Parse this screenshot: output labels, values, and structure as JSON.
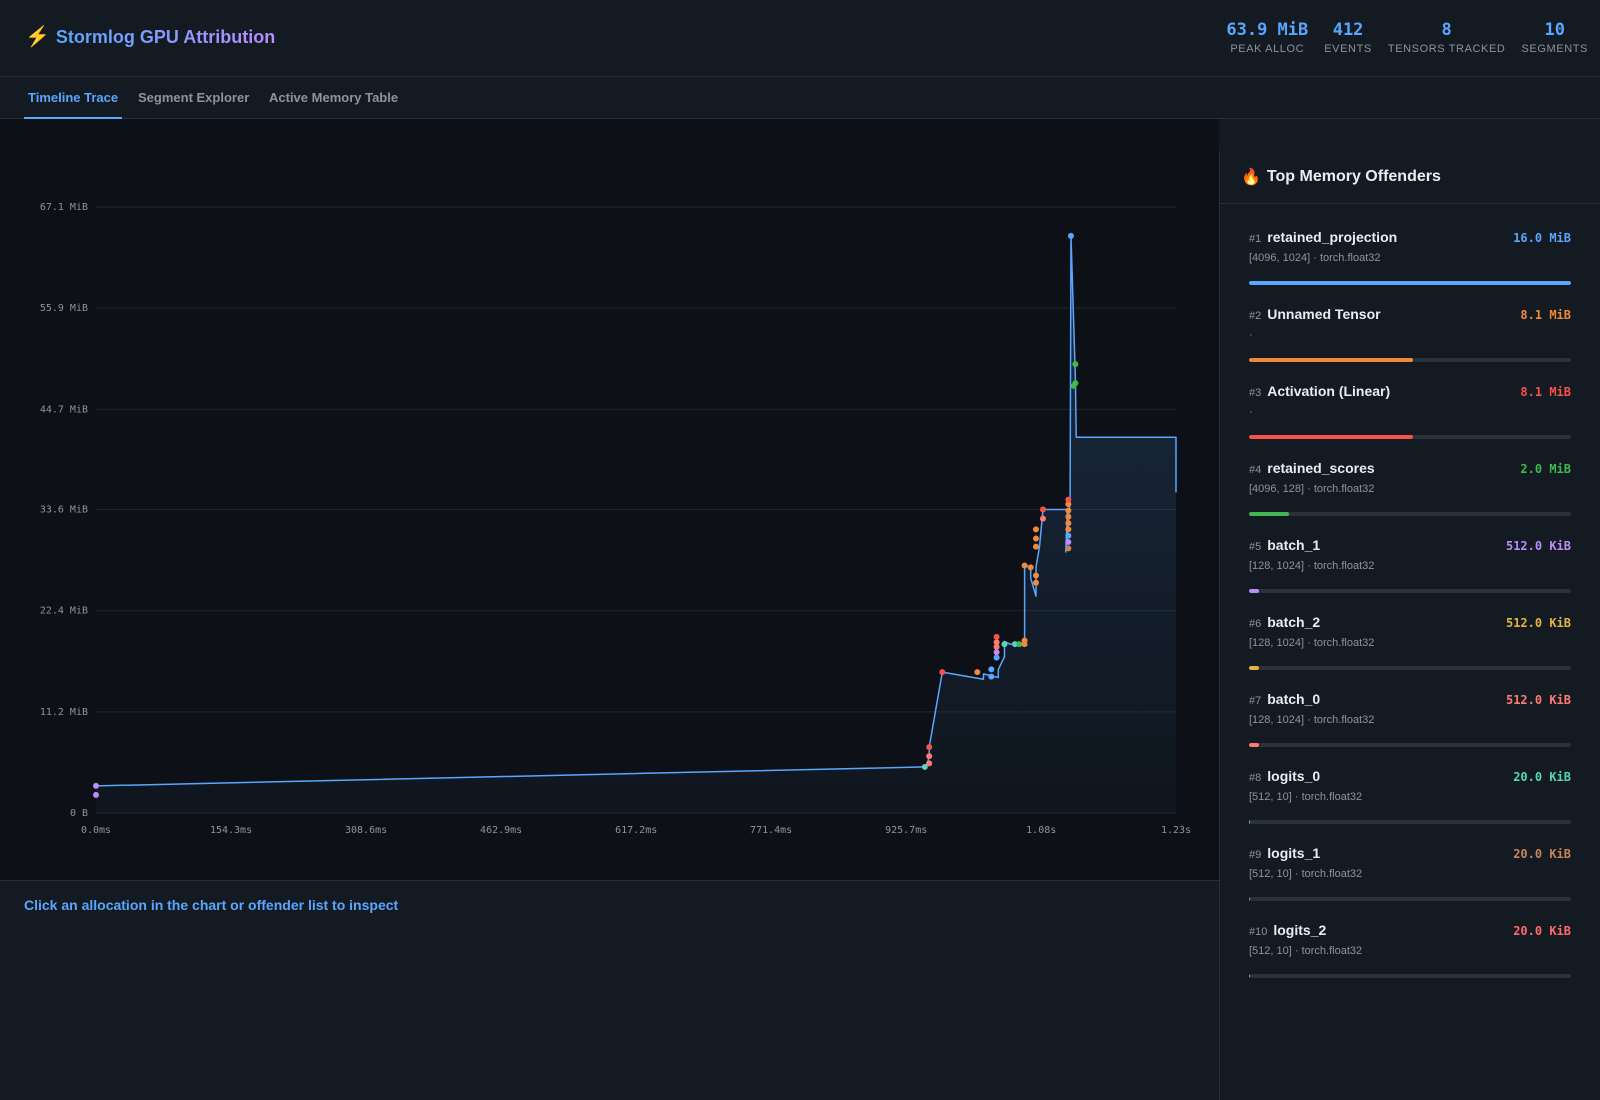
{
  "app": {
    "title": "Stormlog GPU Attribution",
    "icon": "lightning-icon"
  },
  "stats": [
    {
      "value": "63.9 MiB",
      "label": "PEAK ALLOC"
    },
    {
      "value": "412",
      "label": "EVENTS"
    },
    {
      "value": "8",
      "label": "TENSORS TRACKED"
    },
    {
      "value": "10",
      "label": "SEGMENTS"
    }
  ],
  "tabs": [
    {
      "label": "Timeline Trace",
      "active": true
    },
    {
      "label": "Segment Explorer",
      "active": false
    },
    {
      "label": "Active Memory Table",
      "active": false
    }
  ],
  "inspector": {
    "hint": "Click an allocation in the chart or offender list to inspect"
  },
  "sidebar": {
    "title": "Top Memory Offenders",
    "icon": "fire-icon",
    "items": [
      {
        "rank": "#1",
        "name": "retained_projection",
        "size": "16.0 MiB",
        "meta": "[4096, 1024] · torch.float32",
        "color": "#58a6ff",
        "fraction": 1.0
      },
      {
        "rank": "#2",
        "name": "Unnamed Tensor",
        "size": "8.1 MiB",
        "meta": "·",
        "color": "#f0883e",
        "fraction": 0.51
      },
      {
        "rank": "#3",
        "name": "Activation (Linear)",
        "size": "8.1 MiB",
        "meta": "·",
        "color": "#f85149",
        "fraction": 0.51
      },
      {
        "rank": "#4",
        "name": "retained_scores",
        "size": "2.0 MiB",
        "meta": "[4096, 128] · torch.float32",
        "color": "#3fb950",
        "fraction": 0.125
      },
      {
        "rank": "#5",
        "name": "batch_1",
        "size": "512.0 KiB",
        "meta": "[128, 1024] · torch.float32",
        "color": "#bc8cff",
        "fraction": 0.031
      },
      {
        "rank": "#6",
        "name": "batch_2",
        "size": "512.0 KiB",
        "meta": "[128, 1024] · torch.float32",
        "color": "#e3b341",
        "fraction": 0.031
      },
      {
        "rank": "#7",
        "name": "batch_0",
        "size": "512.0 KiB",
        "meta": "[128, 1024] · torch.float32",
        "color": "#ff7b72",
        "fraction": 0.031
      },
      {
        "rank": "#8",
        "name": "logits_0",
        "size": "20.0 KiB",
        "meta": "[512, 10] · torch.float32",
        "color": "#56d4bc",
        "fraction": 0.0015
      },
      {
        "rank": "#9",
        "name": "logits_1",
        "size": "20.0 KiB",
        "meta": "[512, 10] · torch.float32",
        "color": "#c8835a",
        "fraction": 0.0015
      },
      {
        "rank": "#10",
        "name": "logits_2",
        "size": "20.0 KiB",
        "meta": "[512, 10] · torch.float32",
        "color": "#ff6b6b",
        "fraction": 0.0015
      }
    ]
  },
  "chart_data": {
    "type": "line",
    "title": "",
    "xlabel": "",
    "ylabel": "",
    "x_unit": "ms",
    "y_unit": "MiB",
    "xlim": [
      0,
      1234
    ],
    "ylim": [
      0,
      67.1
    ],
    "x_ticks": [
      "0.0ms",
      "154.3ms",
      "308.6ms",
      "462.9ms",
      "617.2ms",
      "771.4ms",
      "925.7ms",
      "1.08s",
      "1.23s"
    ],
    "x_tick_values": [
      0,
      154.3,
      308.6,
      462.9,
      617.2,
      771.4,
      925.7,
      1080,
      1234
    ],
    "y_ticks": [
      "0 B",
      "11.2 MiB",
      "22.4 MiB",
      "33.6 MiB",
      "44.7 MiB",
      "55.9 MiB",
      "67.1 MiB"
    ],
    "y_tick_values": [
      0,
      11.2,
      22.4,
      33.6,
      44.7,
      55.9,
      67.1
    ],
    "grid": true,
    "line_color": "#58a6ff",
    "series": [
      {
        "values": [
          [
            0,
            3.0
          ],
          [
            947,
            5.1
          ],
          [
            950,
            5.5
          ],
          [
            952,
            6.3
          ],
          [
            952,
            7.3
          ],
          [
            967,
            15.6
          ],
          [
            1014,
            14.8
          ],
          [
            1014,
            15.4
          ],
          [
            1031,
            15.0
          ],
          [
            1031,
            15.9
          ],
          [
            1038,
            17.3
          ],
          [
            1038,
            19.0
          ],
          [
            1044,
            18.7
          ],
          [
            1061,
            18.7
          ],
          [
            1061,
            19.1
          ],
          [
            1061,
            27.4
          ],
          [
            1068,
            27.2
          ],
          [
            1068,
            26.0
          ],
          [
            1074,
            24.0
          ],
          [
            1074,
            27.2
          ],
          [
            1078,
            29.5
          ],
          [
            1082,
            33.6
          ],
          [
            1110,
            33.6
          ],
          [
            1108,
            28.9
          ],
          [
            1113,
            34.7
          ],
          [
            1114,
            63.9
          ],
          [
            1119,
            48.0
          ],
          [
            1120,
            41.6
          ],
          [
            1234,
            41.6
          ],
          [
            1234,
            35.5
          ]
        ]
      }
    ],
    "markers": [
      {
        "x": 0,
        "y": 3.0,
        "color": "#bc8cff"
      },
      {
        "x": 0,
        "y": 2.0,
        "color": "#bc8cff"
      },
      {
        "x": 947,
        "y": 5.1,
        "color": "#56d4bc"
      },
      {
        "x": 952,
        "y": 5.5,
        "color": "#ff7b72"
      },
      {
        "x": 952,
        "y": 6.3,
        "color": "#ff7b72"
      },
      {
        "x": 952,
        "y": 7.3,
        "color": "#f85149"
      },
      {
        "x": 967,
        "y": 15.6,
        "color": "#f85149"
      },
      {
        "x": 1007,
        "y": 15.6,
        "color": "#f0883e"
      },
      {
        "x": 1023,
        "y": 15.1,
        "color": "#58a6ff"
      },
      {
        "x": 1023,
        "y": 15.9,
        "color": "#58a6ff"
      },
      {
        "x": 1029,
        "y": 17.2,
        "color": "#58a6ff"
      },
      {
        "x": 1029,
        "y": 17.8,
        "color": "#bc8cff"
      },
      {
        "x": 1029,
        "y": 18.4,
        "color": "#ff7b72"
      },
      {
        "x": 1029,
        "y": 18.9,
        "color": "#ff7b72"
      },
      {
        "x": 1029,
        "y": 19.5,
        "color": "#f85149"
      },
      {
        "x": 1038,
        "y": 18.7,
        "color": "#56d4bc"
      },
      {
        "x": 1050,
        "y": 18.7,
        "color": "#56d4bc"
      },
      {
        "x": 1055,
        "y": 18.7,
        "color": "#3fb950"
      },
      {
        "x": 1061,
        "y": 18.7,
        "color": "#f0883e"
      },
      {
        "x": 1061,
        "y": 19.1,
        "color": "#f0883e"
      },
      {
        "x": 1061,
        "y": 27.4,
        "color": "#f0883e"
      },
      {
        "x": 1068,
        "y": 27.2,
        "color": "#f0883e"
      },
      {
        "x": 1074,
        "y": 26.3,
        "color": "#f0883e"
      },
      {
        "x": 1074,
        "y": 25.5,
        "color": "#f0883e"
      },
      {
        "x": 1074,
        "y": 29.5,
        "color": "#f0883e"
      },
      {
        "x": 1074,
        "y": 30.4,
        "color": "#f0883e"
      },
      {
        "x": 1074,
        "y": 31.4,
        "color": "#f0883e"
      },
      {
        "x": 1082,
        "y": 32.6,
        "color": "#ff7b72"
      },
      {
        "x": 1082,
        "y": 33.6,
        "color": "#f85149"
      },
      {
        "x": 1111,
        "y": 29.3,
        "color": "#c8835a"
      },
      {
        "x": 1111,
        "y": 30.0,
        "color": "#bc8cff"
      },
      {
        "x": 1111,
        "y": 30.7,
        "color": "#58a6ff"
      },
      {
        "x": 1111,
        "y": 31.4,
        "color": "#f0883e"
      },
      {
        "x": 1111,
        "y": 32.1,
        "color": "#f0883e"
      },
      {
        "x": 1111,
        "y": 32.8,
        "color": "#f0883e"
      },
      {
        "x": 1111,
        "y": 33.5,
        "color": "#f0883e"
      },
      {
        "x": 1111,
        "y": 34.2,
        "color": "#f0883e"
      },
      {
        "x": 1111,
        "y": 34.7,
        "color": "#f85149"
      },
      {
        "x": 1114,
        "y": 63.9,
        "color": "#58a6ff"
      },
      {
        "x": 1117,
        "y": 47.3,
        "color": "#3fb950"
      },
      {
        "x": 1119,
        "y": 49.7,
        "color": "#3fb950"
      },
      {
        "x": 1119,
        "y": 47.6,
        "color": "#3fb950"
      }
    ]
  }
}
